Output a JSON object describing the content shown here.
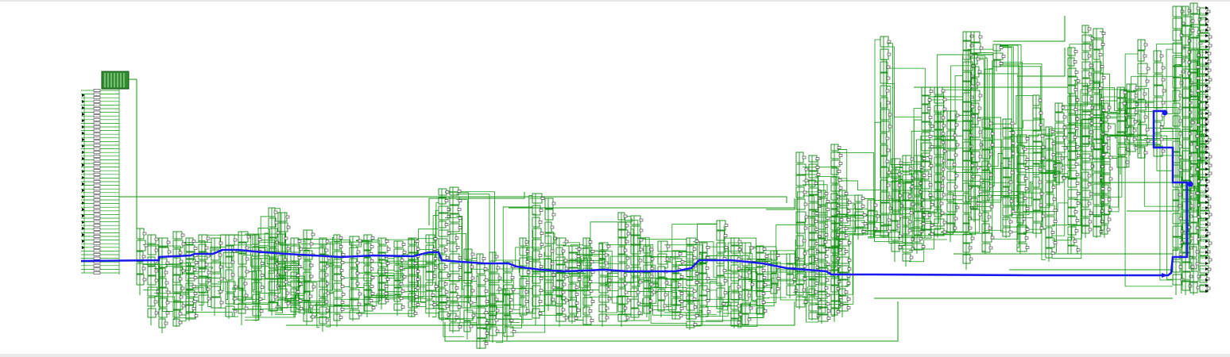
{
  "view": {
    "name": "schematic-netlist-viewer",
    "background": "#ffffff"
  },
  "colors": {
    "net": "#119911",
    "cell_stroke": "#118811",
    "pin": "#333333",
    "critical_path": "#1a1aee",
    "port": "#000000",
    "scrollbar": "#e8e8e8"
  },
  "schematic": {
    "highlighted_net": "critical-path",
    "cell_symbol": "box-with-pins",
    "stage_count": 36
  }
}
